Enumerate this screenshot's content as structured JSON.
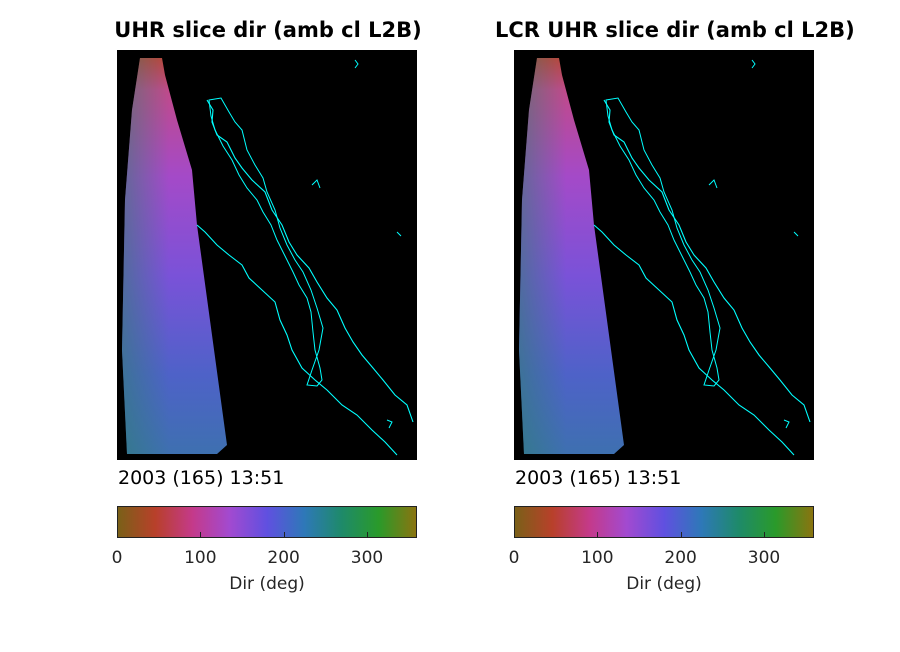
{
  "chart_data": [
    {
      "type": "heatmap",
      "title": "UHR slice dir (amb cl L2B)",
      "timestamp": "2003 (165) 13:51",
      "colorbar": {
        "label": "Dir (deg)",
        "range": [
          0,
          360
        ],
        "ticks": [
          0,
          100,
          200,
          300
        ],
        "colormap": "cyclic-hue",
        "colors": [
          "#7a6018",
          "#b8402a",
          "#c43a8a",
          "#a24ad0",
          "#6050e0",
          "#2e78b8",
          "#1e8a6a",
          "#2a9a2a",
          "#8a7410"
        ]
      },
      "dominant_values_deg": {
        "north_tip": 60,
        "upper_swath": 120,
        "middle_swath": 150,
        "lower_swath": 190
      },
      "background": "#000000",
      "coastline_color": "#00ffff"
    },
    {
      "type": "heatmap",
      "title": "LCR UHR slice dir (amb cl L2B)",
      "timestamp": "2003 (165) 13:51",
      "colorbar": {
        "label": "Dir (deg)",
        "range": [
          0,
          360
        ],
        "ticks": [
          0,
          100,
          200,
          300
        ],
        "colormap": "cyclic-hue",
        "colors": [
          "#7a6018",
          "#b8402a",
          "#c43a8a",
          "#a24ad0",
          "#6050e0",
          "#2e78b8",
          "#1e8a6a",
          "#2a9a2a",
          "#8a7410"
        ]
      },
      "dominant_values_deg": {
        "north_tip": 60,
        "upper_swath": 120,
        "middle_swath": 150,
        "lower_swath": 190
      },
      "background": "#000000",
      "coastline_color": "#00ffff"
    }
  ]
}
